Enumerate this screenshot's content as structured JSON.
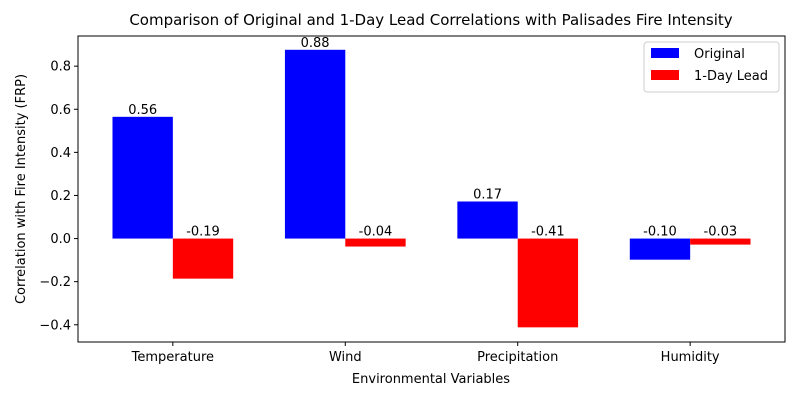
{
  "chart_data": {
    "type": "bar",
    "title": "Comparison of Original and 1-Day Lead Correlations with Palisades Fire Intensity",
    "xlabel": "Environmental Variables",
    "ylabel": "Correlation with Fire Intensity (FRP)",
    "categories": [
      "Temperature",
      "Wind",
      "Precipitation",
      "Humidity"
    ],
    "series": [
      {
        "name": "Original",
        "color": "#0000ff",
        "values": [
          0.565,
          0.876,
          0.172,
          -0.098
        ],
        "labels": [
          "0.56",
          "0.88",
          "0.17",
          "-0.10"
        ]
      },
      {
        "name": "1-Day Lead",
        "color": "#ff0000",
        "values": [
          -0.186,
          -0.037,
          -0.412,
          -0.028
        ],
        "labels": [
          "-0.19",
          "-0.04",
          "-0.41",
          "-0.03"
        ]
      }
    ],
    "ylim": [
      -0.48,
      0.94
    ],
    "yticks": [
      -0.4,
      -0.2,
      0.0,
      0.2,
      0.4,
      0.6,
      0.8
    ],
    "ytick_labels": [
      "−0.4",
      "−0.2",
      "0.0",
      "0.2",
      "0.4",
      "0.6",
      "0.8"
    ],
    "grid": false,
    "legend_position": "top-right"
  }
}
